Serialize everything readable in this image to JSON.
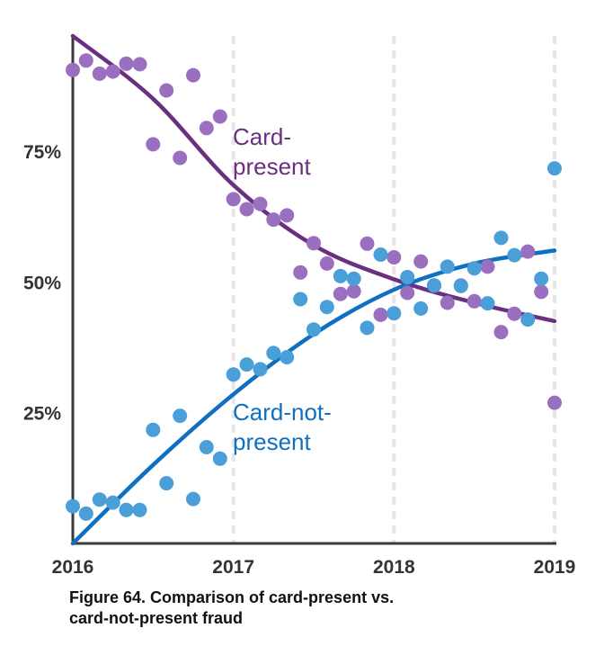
{
  "chart_data": {
    "type": "scatter",
    "title": "",
    "xlabel": "",
    "ylabel": "",
    "x_ticks": [
      {
        "value": 2016,
        "label": "2016"
      },
      {
        "value": 2017,
        "label": "2017"
      },
      {
        "value": 2018,
        "label": "2018"
      },
      {
        "value": 2019,
        "label": "2019"
      }
    ],
    "y_ticks": [
      {
        "value": 25,
        "label": "25%"
      },
      {
        "value": 50,
        "label": "50%"
      },
      {
        "value": 75,
        "label": "75%"
      }
    ],
    "xlim": [
      2016,
      2019.07
    ],
    "ylim": [
      0,
      97
    ],
    "grid": "vertical dashed at years",
    "series": [
      {
        "name": "Card-present",
        "label_lines": [
          "Card-",
          "present"
        ],
        "color": "#9b6fbf",
        "trend_color": "#6b2f7f",
        "points": [
          [
            2016.0,
            90.5
          ],
          [
            2016.083,
            92.3
          ],
          [
            2016.167,
            89.8
          ],
          [
            2016.25,
            90.2
          ],
          [
            2016.333,
            91.7
          ],
          [
            2016.417,
            91.6
          ],
          [
            2016.5,
            76.3
          ],
          [
            2016.583,
            86.6
          ],
          [
            2016.667,
            73.7
          ],
          [
            2016.75,
            89.5
          ],
          [
            2016.833,
            79.4
          ],
          [
            2016.917,
            81.6
          ],
          [
            2017.0,
            65.8
          ],
          [
            2017.083,
            63.9
          ],
          [
            2017.167,
            64.9
          ],
          [
            2017.25,
            61.9
          ],
          [
            2017.333,
            62.7
          ],
          [
            2017.417,
            51.8
          ],
          [
            2017.5,
            57.4
          ],
          [
            2017.583,
            53.5
          ],
          [
            2017.667,
            47.7
          ],
          [
            2017.75,
            48.2
          ],
          [
            2017.833,
            57.3
          ],
          [
            2017.917,
            43.7
          ],
          [
            2018.0,
            54.7
          ],
          [
            2018.083,
            47.9
          ],
          [
            2018.167,
            53.9
          ],
          [
            2018.25,
            49.3
          ],
          [
            2018.333,
            46.0
          ],
          [
            2018.417,
            49.3
          ],
          [
            2018.5,
            46.3
          ],
          [
            2018.583,
            52.9
          ],
          [
            2018.667,
            40.4
          ],
          [
            2018.75,
            43.9
          ],
          [
            2018.833,
            55.8
          ],
          [
            2018.917,
            48.1
          ],
          [
            2019.0,
            26.9
          ]
        ],
        "trend": [
          [
            2016.0,
            97
          ],
          [
            2016.5,
            85
          ],
          [
            2017.0,
            68.5
          ],
          [
            2017.5,
            57
          ],
          [
            2018.0,
            50.5
          ],
          [
            2018.5,
            46
          ],
          [
            2019.0,
            42.5
          ]
        ]
      },
      {
        "name": "Card-not-present",
        "label_lines": [
          "Card-not-",
          "present"
        ],
        "color": "#4a9fd8",
        "trend_color": "#0f6fc0",
        "points": [
          [
            2016.0,
            7.1
          ],
          [
            2016.083,
            5.7
          ],
          [
            2016.167,
            8.4
          ],
          [
            2016.25,
            7.8
          ],
          [
            2016.333,
            6.4
          ],
          [
            2016.417,
            6.4
          ],
          [
            2016.5,
            21.7
          ],
          [
            2016.583,
            11.5
          ],
          [
            2016.667,
            24.4
          ],
          [
            2016.75,
            8.5
          ],
          [
            2016.833,
            18.4
          ],
          [
            2016.917,
            16.2
          ],
          [
            2017.0,
            32.3
          ],
          [
            2017.083,
            34.2
          ],
          [
            2017.167,
            33.3
          ],
          [
            2017.25,
            36.4
          ],
          [
            2017.333,
            35.6
          ],
          [
            2017.417,
            46.7
          ],
          [
            2017.5,
            40.9
          ],
          [
            2017.583,
            45.2
          ],
          [
            2017.667,
            51.1
          ],
          [
            2017.75,
            50.6
          ],
          [
            2017.833,
            41.2
          ],
          [
            2017.917,
            55.2
          ],
          [
            2018.0,
            44.0
          ],
          [
            2018.083,
            50.9
          ],
          [
            2018.167,
            44.9
          ],
          [
            2018.25,
            49.3
          ],
          [
            2018.333,
            52.9
          ],
          [
            2018.417,
            49.2
          ],
          [
            2018.5,
            52.6
          ],
          [
            2018.583,
            45.9
          ],
          [
            2018.667,
            58.4
          ],
          [
            2018.75,
            55.1
          ],
          [
            2018.833,
            42.8
          ],
          [
            2018.917,
            50.6
          ],
          [
            2019.0,
            71.7
          ]
        ],
        "trend": [
          [
            2016.0,
            0
          ],
          [
            2016.5,
            15
          ],
          [
            2017.0,
            28.5
          ],
          [
            2017.5,
            40
          ],
          [
            2018.0,
            48.5
          ],
          [
            2018.5,
            53.5
          ],
          [
            2019.0,
            56
          ]
        ]
      }
    ]
  },
  "caption": {
    "line1": "Figure 64. Comparison of card-present vs.",
    "line2": "card-not-present fraud"
  }
}
